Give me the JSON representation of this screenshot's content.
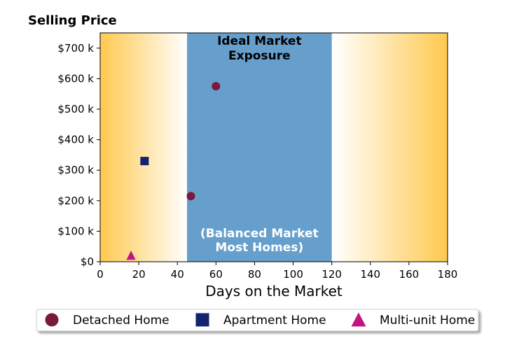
{
  "chart_data": {
    "type": "scatter",
    "ylabel": "Selling Price",
    "xlabel": "Days on the Market",
    "xlim": [
      0,
      180
    ],
    "ylim": [
      0,
      750000
    ],
    "x_ticks": [
      0,
      20,
      40,
      60,
      80,
      100,
      120,
      140,
      160,
      180
    ],
    "x_tick_labels": [
      "0",
      "20",
      "40",
      "60",
      "80",
      "100",
      "120",
      "140",
      "160",
      "180"
    ],
    "y_ticks": [
      0,
      100000,
      200000,
      300000,
      400000,
      500000,
      600000,
      700000
    ],
    "y_tick_labels": [
      "$0",
      "$100 k",
      "$200 k",
      "$300 k",
      "$400 k",
      "$500 k",
      "$600 k",
      "$700 k"
    ],
    "grid": false,
    "legend_placement": "bottom",
    "regions": [
      {
        "x_start": 45,
        "x_end": 120,
        "color": "#679fcc",
        "label_top": [
          "Ideal Market",
          "Exposure"
        ],
        "label_bottom": [
          "(Balanced Market",
          "Most Homes)"
        ]
      }
    ],
    "background_gradient": {
      "edge_color": "#ffc94f",
      "center_color": "#ffffff"
    },
    "series": [
      {
        "name": "Detached Home",
        "marker": "circle",
        "color": "#7a1a3a",
        "points": [
          {
            "x": 47,
            "y": 215000
          },
          {
            "x": 60,
            "y": 575000
          }
        ]
      },
      {
        "name": "Apartment Home",
        "marker": "square",
        "color": "#14236e",
        "points": [
          {
            "x": 23,
            "y": 330000
          }
        ]
      },
      {
        "name": "Multi-unit Home",
        "marker": "triangle",
        "color": "#c4127e",
        "points": [
          {
            "x": 16,
            "y": 20000
          }
        ]
      }
    ]
  }
}
